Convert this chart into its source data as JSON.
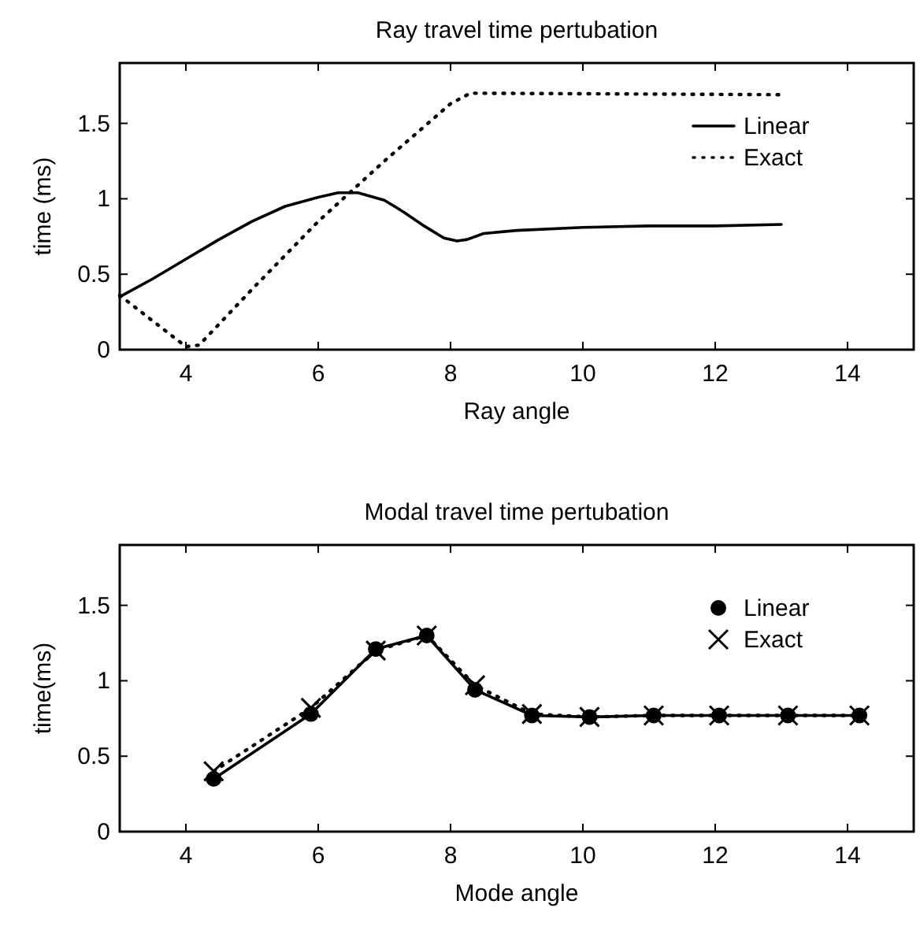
{
  "chart_data": [
    {
      "type": "line",
      "title": "Ray travel time pertubation",
      "xlabel": "Ray angle",
      "ylabel": "time (ms)",
      "xlim": [
        3,
        15
      ],
      "ylim": [
        0,
        1.9
      ],
      "xticks": [
        4,
        6,
        8,
        10,
        12,
        14
      ],
      "yticks": [
        0,
        0.5,
        1,
        1.5
      ],
      "grid": false,
      "legend": "top right",
      "marker": "none",
      "series": [
        {
          "name": "Linear",
          "color": "#000000",
          "line_style": "solid",
          "x": [
            3,
            3.5,
            4,
            4.5,
            5,
            5.5,
            6,
            6.3,
            6.6,
            7,
            7.3,
            7.6,
            7.9,
            8.1,
            8.25,
            8.5,
            9,
            10,
            11,
            12,
            13
          ],
          "values": [
            0.35,
            0.47,
            0.6,
            0.73,
            0.85,
            0.95,
            1.01,
            1.04,
            1.04,
            0.99,
            0.91,
            0.82,
            0.74,
            0.72,
            0.73,
            0.77,
            0.79,
            0.81,
            0.82,
            0.82,
            0.83
          ]
        },
        {
          "name": "Exact",
          "color": "#000000",
          "line_style": "dotted",
          "x": [
            3,
            4,
            4.2,
            5,
            6,
            7,
            8,
            8.3,
            13
          ],
          "values": [
            0.36,
            0.02,
            0.03,
            0.4,
            0.85,
            1.25,
            1.63,
            1.7,
            1.69
          ]
        }
      ]
    },
    {
      "type": "line",
      "title": "Modal travel time pertubation",
      "xlabel": "Mode angle",
      "ylabel": "time(ms)",
      "xlim": [
        3,
        15
      ],
      "ylim": [
        0,
        1.9
      ],
      "xticks": [
        4,
        6,
        8,
        10,
        12,
        14
      ],
      "yticks": [
        0,
        0.5,
        1,
        1.5
      ],
      "grid": false,
      "legend": "top right",
      "series": [
        {
          "name": "Linear",
          "color": "#000000",
          "line_style": "solid",
          "marker": "circle",
          "x": [
            4.42,
            5.89,
            6.87,
            7.64,
            8.37,
            9.23,
            10.1,
            11.07,
            12.06,
            13.1,
            14.18
          ],
          "values": [
            0.35,
            0.78,
            1.21,
            1.3,
            0.94,
            0.77,
            0.76,
            0.77,
            0.77,
            0.77,
            0.77
          ]
        },
        {
          "name": "Exact",
          "color": "#000000",
          "line_style": "dotted",
          "marker": "cross",
          "x": [
            4.42,
            5.89,
            6.87,
            7.64,
            8.37,
            9.23,
            10.1,
            11.07,
            12.06,
            13.1,
            14.18
          ],
          "values": [
            0.4,
            0.82,
            1.2,
            1.3,
            0.97,
            0.78,
            0.76,
            0.77,
            0.77,
            0.77,
            0.77
          ]
        }
      ]
    }
  ]
}
